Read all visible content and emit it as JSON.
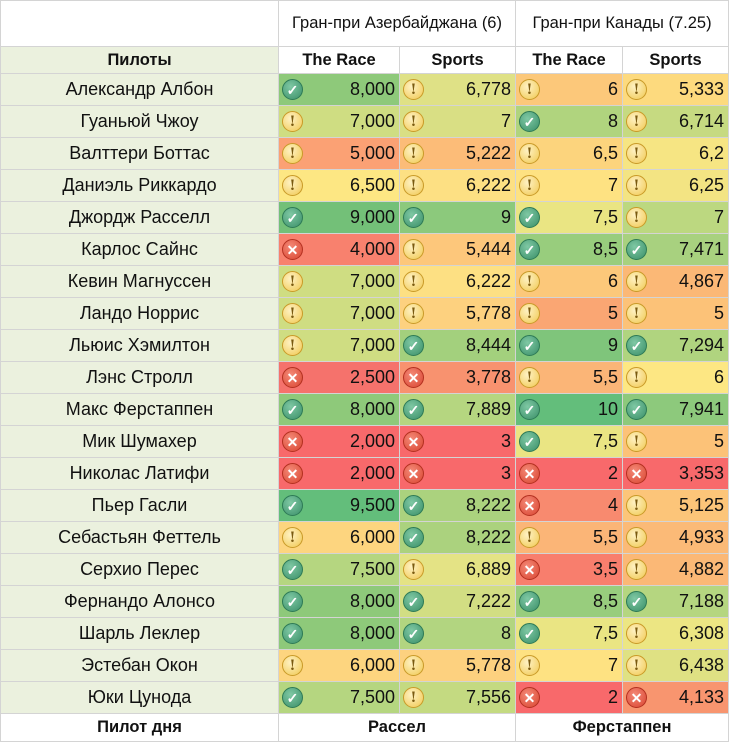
{
  "races": [
    {
      "title": "Гран-при Азербайджана (6)",
      "col_a": "The Race",
      "col_b": "Sports"
    },
    {
      "title": "Гран-при Канады (7.25)",
      "col_a": "The Race",
      "col_b": "Sports"
    }
  ],
  "header_label": "Пилоты",
  "icon_names": {
    "check": "check-circle-icon",
    "excl": "exclamation-circle-icon",
    "cross": "cross-circle-icon"
  },
  "rows": [
    {
      "driver": "Александр Албон",
      "cells": [
        {
          "icon": "check",
          "value": "8,000",
          "bg": "#8ec97a"
        },
        {
          "icon": "excl",
          "value": "6,778",
          "bg": "#dfe186"
        },
        {
          "icon": "excl",
          "value": "6",
          "bg": "#fcc87a"
        },
        {
          "icon": "excl",
          "value": "5,333",
          "bg": "#fdda7e"
        }
      ]
    },
    {
      "driver": "Гуаньюй Чжоу",
      "cells": [
        {
          "icon": "excl",
          "value": "7,000",
          "bg": "#cfdd82"
        },
        {
          "icon": "excl",
          "value": "7",
          "bg": "#d9df84"
        },
        {
          "icon": "check",
          "value": "8",
          "bg": "#b0d47e"
        },
        {
          "icon": "excl",
          "value": "6,714",
          "bg": "#c6da81"
        }
      ]
    },
    {
      "driver": "Валттери Боттас",
      "cells": [
        {
          "icon": "excl",
          "value": "5,000",
          "bg": "#fba174"
        },
        {
          "icon": "excl",
          "value": "5,222",
          "bg": "#fcbc78"
        },
        {
          "icon": "excl",
          "value": "6,5",
          "bg": "#fcd47d"
        },
        {
          "icon": "excl",
          "value": "6,2",
          "bg": "#f6e583"
        }
      ]
    },
    {
      "driver": "Даниэль Риккардо",
      "cells": [
        {
          "icon": "excl",
          "value": "6,500",
          "bg": "#fde783"
        },
        {
          "icon": "excl",
          "value": "6,222",
          "bg": "#fde083"
        },
        {
          "icon": "excl",
          "value": "7",
          "bg": "#fee282"
        },
        {
          "icon": "excl",
          "value": "6,25",
          "bg": "#f3e483"
        }
      ]
    },
    {
      "driver": "Джордж Расселл",
      "cells": [
        {
          "icon": "check",
          "value": "9,000",
          "bg": "#73c078"
        },
        {
          "icon": "check",
          "value": "9",
          "bg": "#8cc97c"
        },
        {
          "icon": "check",
          "value": "7,5",
          "bg": "#eae583"
        },
        {
          "icon": "excl",
          "value": "7",
          "bg": "#bcd880"
        }
      ]
    },
    {
      "driver": "Карлос Сайнс",
      "cells": [
        {
          "icon": "cross",
          "value": "4,000",
          "bg": "#f8816e"
        },
        {
          "icon": "excl",
          "value": "5,444",
          "bg": "#fdc77b"
        },
        {
          "icon": "check",
          "value": "8,5",
          "bg": "#98cd7d"
        },
        {
          "icon": "check",
          "value": "7,471",
          "bg": "#a8d17f"
        }
      ]
    },
    {
      "driver": "Кевин Магнуссен",
      "cells": [
        {
          "icon": "excl",
          "value": "7,000",
          "bg": "#cfdd82"
        },
        {
          "icon": "excl",
          "value": "6,222",
          "bg": "#fde083"
        },
        {
          "icon": "excl",
          "value": "6",
          "bg": "#fcc87a"
        },
        {
          "icon": "excl",
          "value": "4,867",
          "bg": "#fbb876"
        }
      ]
    },
    {
      "driver": "Ландо Норрис",
      "cells": [
        {
          "icon": "excl",
          "value": "7,000",
          "bg": "#cfdd82"
        },
        {
          "icon": "excl",
          "value": "5,778",
          "bg": "#fdd17f"
        },
        {
          "icon": "excl",
          "value": "5",
          "bg": "#faa673"
        },
        {
          "icon": "excl",
          "value": "5",
          "bg": "#fcc278"
        }
      ]
    },
    {
      "driver": "Льюис Хэмилтон",
      "cells": [
        {
          "icon": "excl",
          "value": "7,000",
          "bg": "#cfdd82"
        },
        {
          "icon": "check",
          "value": "8,444",
          "bg": "#a3d07d"
        },
        {
          "icon": "check",
          "value": "9",
          "bg": "#7fc57b"
        },
        {
          "icon": "check",
          "value": "7,294",
          "bg": "#b0d47f"
        }
      ]
    },
    {
      "driver": "Лэнс Стролл",
      "cells": [
        {
          "icon": "cross",
          "value": "2,500",
          "bg": "#f5726c"
        },
        {
          "icon": "cross",
          "value": "3,778",
          "bg": "#f8926f"
        },
        {
          "icon": "excl",
          "value": "5,5",
          "bg": "#fbb577"
        },
        {
          "icon": "excl",
          "value": "6",
          "bg": "#fde783"
        }
      ]
    },
    {
      "driver": "Макс Ферстаппен",
      "cells": [
        {
          "icon": "check",
          "value": "8,000",
          "bg": "#8ec97a"
        },
        {
          "icon": "check",
          "value": "7,889",
          "bg": "#b5d680"
        },
        {
          "icon": "check",
          "value": "10",
          "bg": "#63be7b"
        },
        {
          "icon": "check",
          "value": "7,941",
          "bg": "#8dc97c"
        }
      ]
    },
    {
      "driver": "Мик Шумахер",
      "cells": [
        {
          "icon": "cross",
          "value": "2,000",
          "bg": "#f8696b"
        },
        {
          "icon": "cross",
          "value": "3",
          "bg": "#f8696b"
        },
        {
          "icon": "check",
          "value": "7,5",
          "bg": "#eae583"
        },
        {
          "icon": "excl",
          "value": "5",
          "bg": "#fcc278"
        }
      ]
    },
    {
      "driver": "Николас Латифи",
      "cells": [
        {
          "icon": "cross",
          "value": "2,000",
          "bg": "#f8696b"
        },
        {
          "icon": "cross",
          "value": "3",
          "bg": "#f8696b"
        },
        {
          "icon": "cross",
          "value": "2",
          "bg": "#f8696b"
        },
        {
          "icon": "cross",
          "value": "3,353",
          "bg": "#f8696b"
        }
      ]
    },
    {
      "driver": "Пьер Гасли",
      "cells": [
        {
          "icon": "check",
          "value": "9,500",
          "bg": "#63be7b"
        },
        {
          "icon": "check",
          "value": "8,222",
          "bg": "#abd27e"
        },
        {
          "icon": "cross",
          "value": "4",
          "bg": "#f88a6f"
        },
        {
          "icon": "excl",
          "value": "5,125",
          "bg": "#fcc579"
        }
      ]
    },
    {
      "driver": "Себастьян Феттель",
      "cells": [
        {
          "icon": "excl",
          "value": "6,000",
          "bg": "#fdd57f"
        },
        {
          "icon": "check",
          "value": "8,222",
          "bg": "#abd27e"
        },
        {
          "icon": "excl",
          "value": "5,5",
          "bg": "#fbb577"
        },
        {
          "icon": "excl",
          "value": "4,933",
          "bg": "#fbba77"
        }
      ]
    },
    {
      "driver": "Серхио Перес",
      "cells": [
        {
          "icon": "check",
          "value": "7,500",
          "bg": "#b5d680"
        },
        {
          "icon": "excl",
          "value": "6,889",
          "bg": "#e4e385"
        },
        {
          "icon": "cross",
          "value": "3,5",
          "bg": "#f87e6d"
        },
        {
          "icon": "excl",
          "value": "4,882",
          "bg": "#fbb876"
        }
      ]
    },
    {
      "driver": "Фернандо Алонсо",
      "cells": [
        {
          "icon": "check",
          "value": "8,000",
          "bg": "#8ec97a"
        },
        {
          "icon": "check",
          "value": "7,222",
          "bg": "#d2de83"
        },
        {
          "icon": "check",
          "value": "8,5",
          "bg": "#98cd7d"
        },
        {
          "icon": "check",
          "value": "7,188",
          "bg": "#b5d680"
        }
      ]
    },
    {
      "driver": "Шарль Леклер",
      "cells": [
        {
          "icon": "check",
          "value": "8,000",
          "bg": "#8ec97a"
        },
        {
          "icon": "check",
          "value": "8",
          "bg": "#b2d580"
        },
        {
          "icon": "check",
          "value": "7,5",
          "bg": "#eae583"
        },
        {
          "icon": "excl",
          "value": "6,308",
          "bg": "#ece683"
        }
      ]
    },
    {
      "driver": "Эстебан Окон",
      "cells": [
        {
          "icon": "excl",
          "value": "6,000",
          "bg": "#fdd57f"
        },
        {
          "icon": "excl",
          "value": "5,778",
          "bg": "#fdd17f"
        },
        {
          "icon": "excl",
          "value": "7",
          "bg": "#fee282"
        },
        {
          "icon": "excl",
          "value": "6,438",
          "bg": "#dfe183"
        }
      ]
    },
    {
      "driver": "Юки Цунода",
      "cells": [
        {
          "icon": "check",
          "value": "7,500",
          "bg": "#b5d680"
        },
        {
          "icon": "excl",
          "value": "7,556",
          "bg": "#c4da81"
        },
        {
          "icon": "cross",
          "value": "2",
          "bg": "#f8696b"
        },
        {
          "icon": "cross",
          "value": "4,133",
          "bg": "#f8956f"
        }
      ]
    }
  ],
  "footer": {
    "label": "Пилот дня",
    "race1": "Рассел",
    "race2": "Ферстаппен"
  }
}
